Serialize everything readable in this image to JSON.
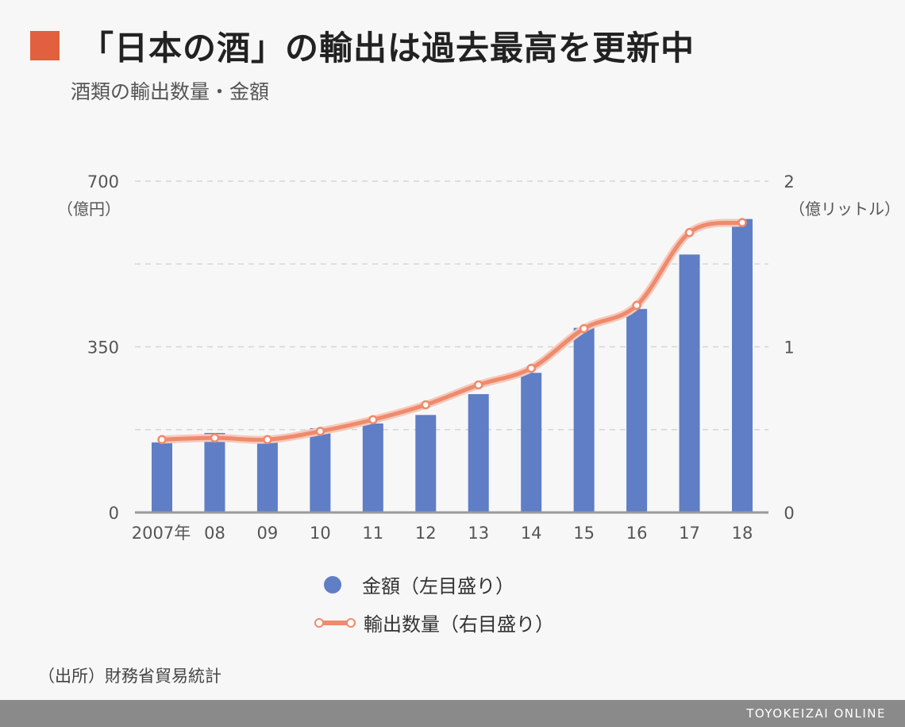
{
  "header": {
    "title": "「日本の酒」の輸出は過去最高を更新中",
    "subtitle": "酒類の輸出数量・金額",
    "accent_color": "#e2603f"
  },
  "chart_data": {
    "type": "bar",
    "categories": [
      "2007年",
      "08",
      "09",
      "10",
      "11",
      "12",
      "13",
      "14",
      "15",
      "16",
      "17",
      "18"
    ],
    "series": [
      {
        "name": "金額（左目盛り）",
        "type": "bar",
        "axis": "left",
        "color": "#5f7ec6",
        "values": [
          148,
          168,
          152,
          178,
          188,
          206,
          250,
          295,
          390,
          430,
          545,
          620
        ]
      },
      {
        "name": "輸出数量（右目盛り）",
        "type": "line",
        "axis": "right",
        "color": "#ef8a6d",
        "values": [
          0.44,
          0.45,
          0.44,
          0.49,
          0.56,
          0.65,
          0.77,
          0.87,
          1.11,
          1.25,
          1.69,
          1.75
        ]
      }
    ],
    "y_left": {
      "ticks": [
        "0",
        "350",
        "700"
      ],
      "range": [
        0,
        700
      ],
      "unit": "（億円）"
    },
    "y_right": {
      "ticks": [
        "0",
        "1",
        "2"
      ],
      "range": [
        0,
        2
      ],
      "unit": "（億リットル）"
    },
    "grid": true,
    "legend_position": "bottom-center"
  },
  "source": "（出所）財務省貿易統計",
  "footer": {
    "brand": "TOYOKEIZAI ONLINE"
  }
}
